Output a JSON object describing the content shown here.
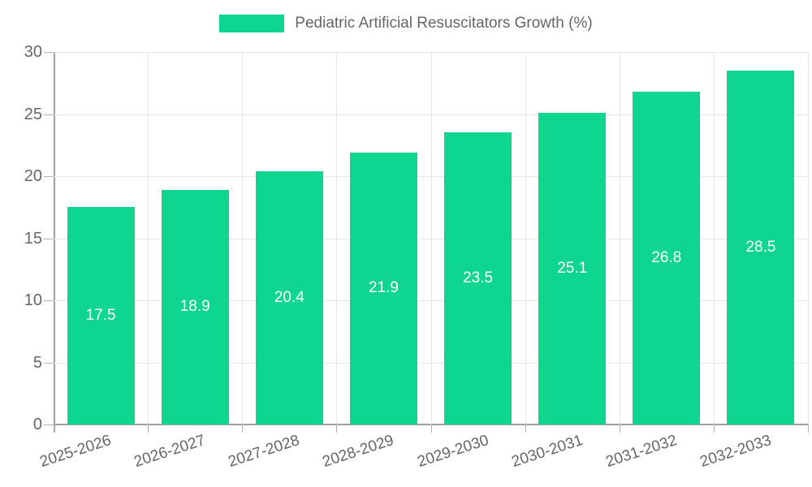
{
  "chart_data": {
    "type": "bar",
    "title": "Pediatric Artificial Resuscitators Growth (%)",
    "legend_entries": [
      "Pediatric Artificial Resuscitators Growth (%)"
    ],
    "legend_position": "top-center",
    "categories": [
      "2025-2026",
      "2026-2027",
      "2027-2028",
      "2028-2029",
      "2029-2030",
      "2030-2031",
      "2031-2032",
      "2032-2033"
    ],
    "values": [
      17.5,
      18.9,
      20.4,
      21.9,
      23.5,
      25.1,
      26.8,
      28.5
    ],
    "value_labels": [
      "17.5",
      "18.9",
      "20.4",
      "21.9",
      "23.5",
      "25.1",
      "26.8",
      "28.5"
    ],
    "xlabel": "",
    "ylabel": "",
    "ylim": [
      0,
      30
    ],
    "yticks": [
      0,
      5,
      10,
      15,
      20,
      25,
      30
    ],
    "ytick_labels": [
      "0",
      "5",
      "10",
      "15",
      "20",
      "25",
      "30"
    ],
    "grid": true,
    "bar_color": "#0ed68f",
    "value_label_color": "#ffffff",
    "axis_text_color": "#666666",
    "gridline_color": "#e6e6e6",
    "axis_line_color": "#a0a0a0"
  }
}
